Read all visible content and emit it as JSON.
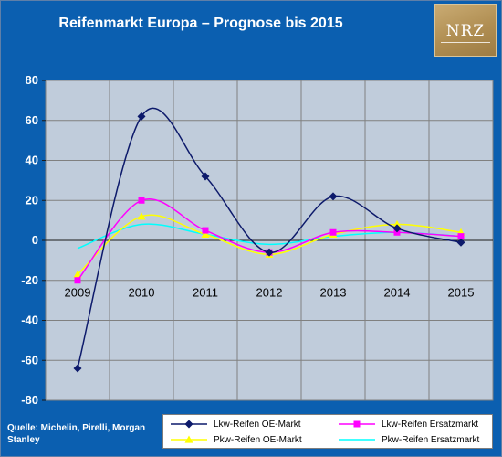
{
  "chart_data": {
    "type": "line",
    "title": "Reifenmarkt Europa – Prognose bis 2015",
    "categories": [
      "2009",
      "2010",
      "2011",
      "2012",
      "2013",
      "2014",
      "2015"
    ],
    "ylim": [
      -80,
      80
    ],
    "yticks": [
      80,
      60,
      40,
      20,
      0,
      -20,
      -40,
      -60,
      -80
    ],
    "grid": true,
    "legend_position": "bottom",
    "plot_background": "#c0ccdb",
    "series": [
      {
        "name": "Lkw-Reifen OE-Markt",
        "color": "#0d1a6b",
        "marker": "diamond",
        "values": [
          -64,
          62,
          32,
          -6,
          22,
          6,
          -1
        ]
      },
      {
        "name": "Lkw-Reifen Ersatzmarkt",
        "color": "#ff00ff",
        "marker": "square",
        "values": [
          -20,
          20,
          5,
          -6,
          4,
          4,
          2
        ]
      },
      {
        "name": "Pkw-Reifen OE-Markt",
        "color": "#ffff00",
        "marker": "triangle",
        "values": [
          -17,
          12,
          3,
          -7,
          3,
          8,
          4
        ]
      },
      {
        "name": "Pkw-Reifen Ersatzmarkt",
        "color": "#00ffff",
        "marker": "none",
        "values": [
          -4,
          8,
          3,
          -2,
          2,
          4,
          2
        ]
      }
    ]
  },
  "logo": {
    "text": "NRZ"
  },
  "source_note": "Quelle: Michelin, Pirelli, Morgan Stanley"
}
